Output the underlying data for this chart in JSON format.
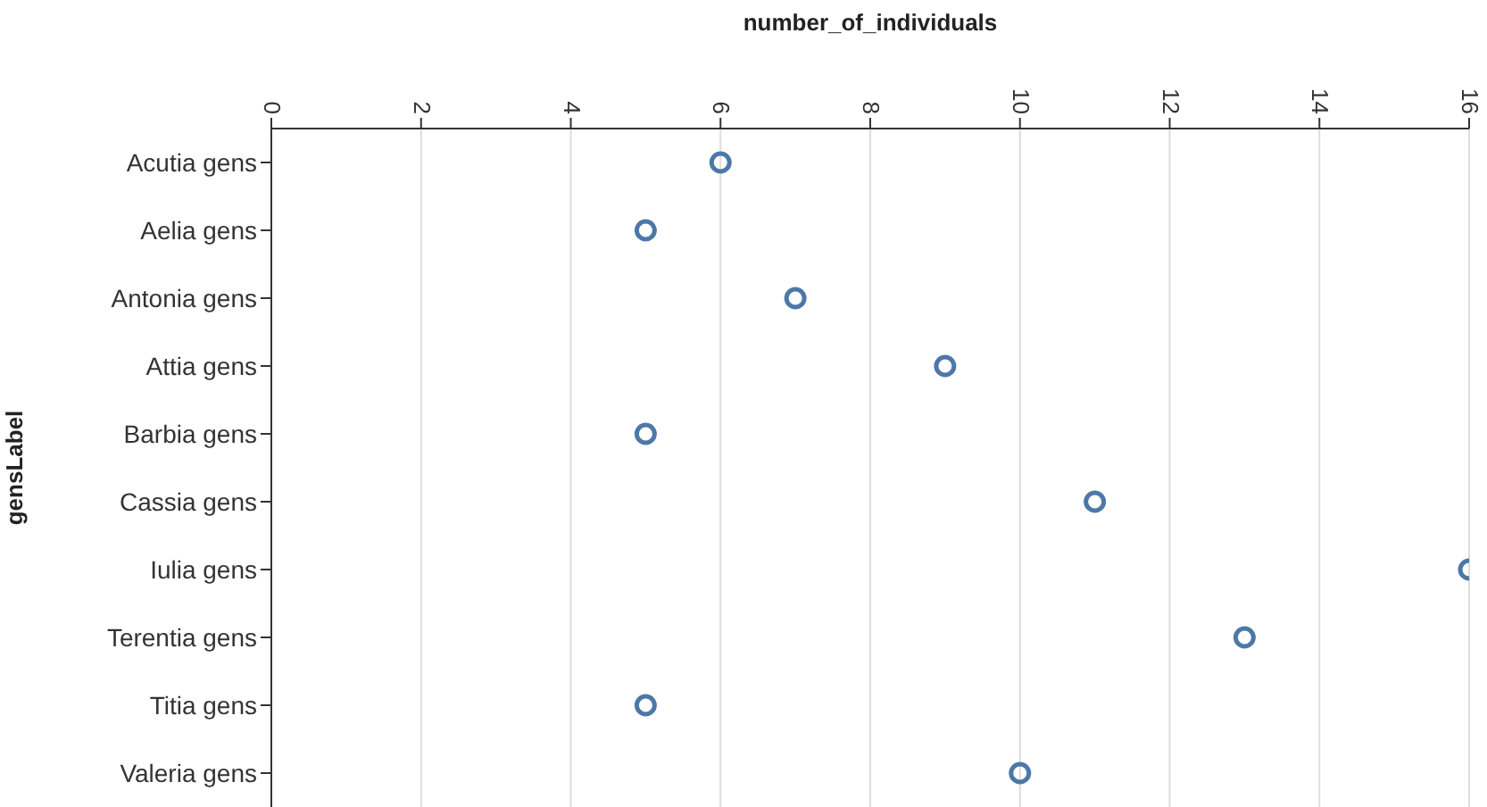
{
  "chart_data": {
    "type": "scatter",
    "orientation": "horizontal",
    "xlabel": "number_of_individuals",
    "ylabel": "gensLabel",
    "categories": [
      "Acutia gens",
      "Aelia gens",
      "Antonia gens",
      "Attia gens",
      "Barbia gens",
      "Cassia gens",
      "Iulia gens",
      "Terentia gens",
      "Titia gens",
      "Valeria gens"
    ],
    "values": [
      6,
      5,
      7,
      9,
      5,
      11,
      16,
      13,
      5,
      10
    ],
    "color": "#4c78a8",
    "marker": "circle",
    "grid": "x",
    "xlim": [
      0,
      16
    ],
    "xticks": [
      0,
      2,
      4,
      6,
      8,
      10,
      12,
      14,
      16
    ]
  }
}
